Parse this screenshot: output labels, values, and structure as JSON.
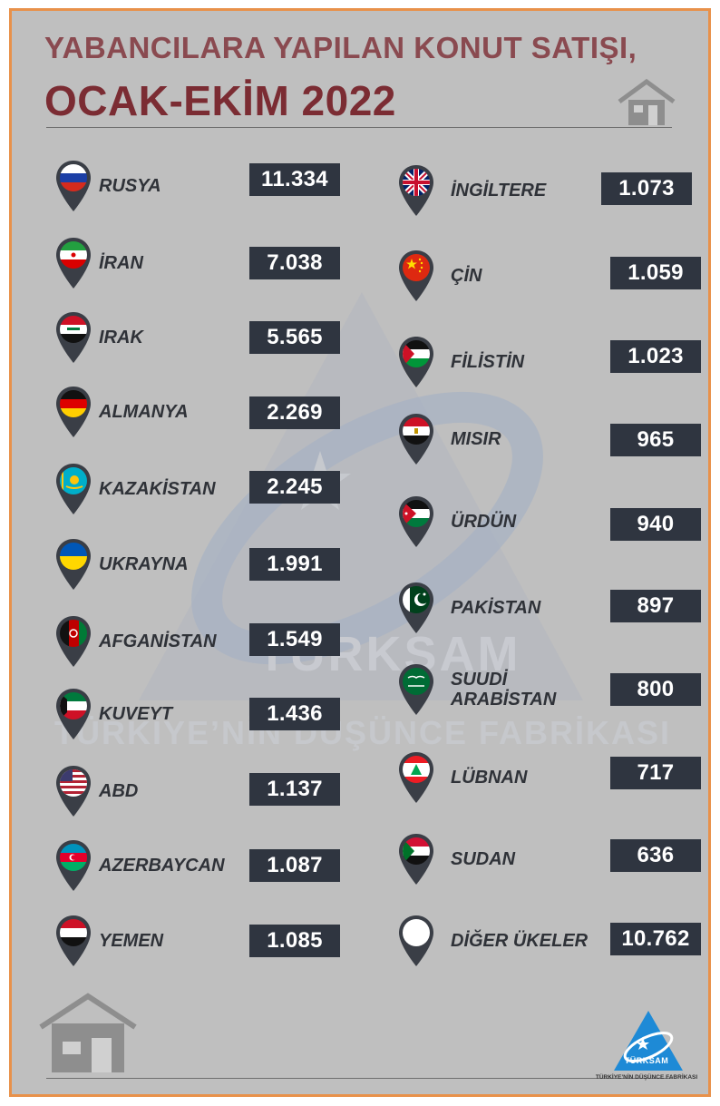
{
  "header": {
    "title_line1": "YABANCILARA YAPILAN KONUT SATIŞI,",
    "title_line2": "OCAK-EKİM 2022"
  },
  "watermark": {
    "brand": "TÜRKSAM",
    "tagline": "TÜRKİYE’NİN DÜŞÜNCE FABRİKASI"
  },
  "left_column": [
    {
      "country": "RUSYA",
      "value": "11.334",
      "flag": "russia-flag"
    },
    {
      "country": "İRAN",
      "value": "7.038",
      "flag": "iran-flag"
    },
    {
      "country": "IRAK",
      "value": "5.565",
      "flag": "iraq-flag"
    },
    {
      "country": "ALMANYA",
      "value": "2.269",
      "flag": "germany-flag"
    },
    {
      "country": "KAZAKİSTAN",
      "value": "2.245",
      "flag": "kazakhstan-flag"
    },
    {
      "country": "UKRAYNA",
      "value": "1.991",
      "flag": "ukraine-flag"
    },
    {
      "country": "AFGANİSTAN",
      "value": "1.549",
      "flag": "afghanistan-flag"
    },
    {
      "country": "KUVEYT",
      "value": "1.436",
      "flag": "kuwait-flag"
    },
    {
      "country": "ABD",
      "value": "1.137",
      "flag": "usa-flag"
    },
    {
      "country": "AZERBAYCAN",
      "value": "1.087",
      "flag": "azerbaijan-flag"
    },
    {
      "country": "YEMEN",
      "value": "1.085",
      "flag": "yemen-flag"
    }
  ],
  "right_column": [
    {
      "country": "İNGİLTERE",
      "value": "1.073",
      "flag": "uk-flag"
    },
    {
      "country": "ÇİN",
      "value": "1.059",
      "flag": "china-flag"
    },
    {
      "country": "FİLİSTİN",
      "value": "1.023",
      "flag": "palestine-flag"
    },
    {
      "country": "MISIR",
      "value": "965",
      "flag": "egypt-flag"
    },
    {
      "country": "ÜRDÜN",
      "value": "940",
      "flag": "jordan-flag"
    },
    {
      "country": "PAKİSTAN",
      "value": "897",
      "flag": "pakistan-flag"
    },
    {
      "country": "SUUDİ",
      "country_line2": "ARABİSTAN",
      "value": "800",
      "flag": "saudi-arabia-flag"
    },
    {
      "country": "LÜBNAN",
      "value": "717",
      "flag": "lebanon-flag"
    },
    {
      "country": "SUDAN",
      "value": "636",
      "flag": "sudan-flag"
    },
    {
      "country": "DİĞER ÜKELER",
      "value": "10.762",
      "flag": "blank-white-flag"
    }
  ],
  "footer": {
    "logo_name": "TÜRKSAM",
    "logo_tagline": "TÜRKİYE’NİN DÜŞÜNCE FABRİKASI"
  },
  "colors": {
    "frame_border": "#e8914a",
    "background": "#bfbfbf",
    "title_line1": "#8a4a50",
    "title_line2": "#7b2c33",
    "value_box": "#2f3540",
    "pin": "#3a3e46"
  }
}
